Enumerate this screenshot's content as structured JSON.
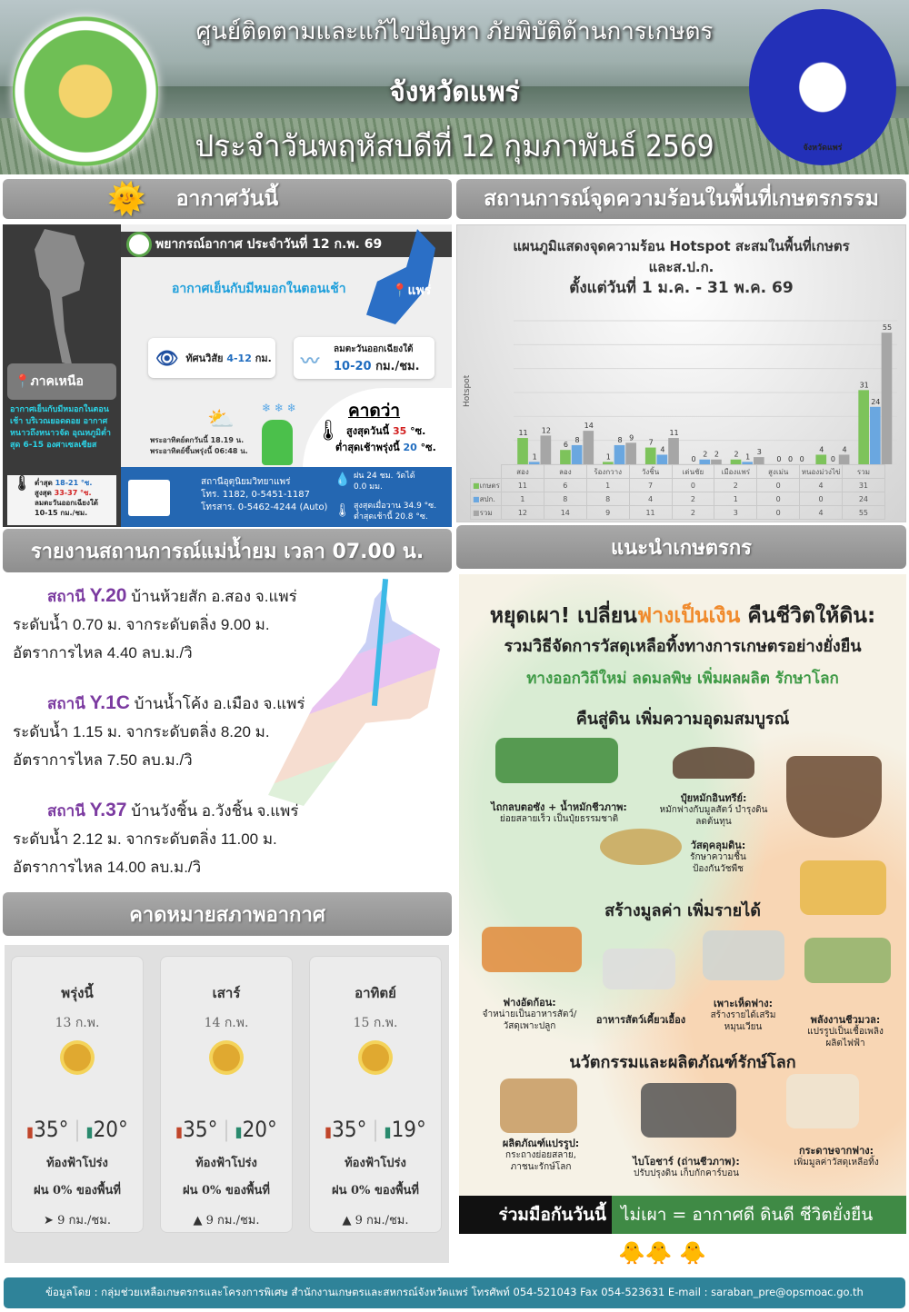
{
  "header": {
    "line1": "ศูนย์ติดตามและแก้ไขปัญหา ภัยพิบัติด้านการเกษตร",
    "line2": "จังหวัดแพร่",
    "line3": "ประจำวันพฤหัสบดีที่  12  กุมภาพันธ์  2569",
    "logo_right_text": "จังหวัดแพร่"
  },
  "sections": {
    "weather_today": "อากาศวันนี้",
    "hotspot": "สถานการณ์จุดความร้อนในพื้นที่เกษตรกรรม",
    "river": "รายงานสถานการณ์แม่น้ำยม เวลา 07.00 น.",
    "advice": "แนะนำเกษตรกร",
    "forecast": "คาดหมายสภาพอากาศ"
  },
  "weather": {
    "title": "พยากรณ์อากาศ ประจำวันที่ 12 ก.พ. 69",
    "summary": "อากาศเย็นกับมีหมอกในตอนเช้า",
    "province": "แพร่",
    "region": "ภาคเหนือ",
    "region_text": "อากาศเย็นกับมีหมอกในตอนเช้า บริเวณยอดดอย อากาศหนาวถึงหนาวจัด อุณหภูมิต่ำสุด 6-15 องศาเซลเซียส",
    "region_min_label": "ต่ำสุด",
    "region_min": "18-21 °ซ.",
    "region_max_label": "สูงสุด",
    "region_max": "33-37 °ซ.",
    "region_wind": "ลมตะวันออกเฉียงใต้",
    "region_wind_speed": "10-15 กม./ชม.",
    "visibility_label": "ทัศนวิสัย",
    "visibility": "4-12",
    "visibility_unit": "กม.",
    "wind_label": "ลมตะวันออกเฉียงใต้",
    "wind_speed": "10-20",
    "wind_unit": "กม./ชม.",
    "sunset": "พระอาทิตย์ตกวันนี้ 18.19 น.",
    "sunrise": "พระอาทิตย์ขึ้นพรุ่งนี้ 06:48 น.",
    "expect_title": "คาดว่า",
    "max_label": "สูงสุดวันนี้",
    "max": "35",
    "min_label": "ต่ำสุดเช้าพรุ่งนี้",
    "min": "20",
    "deg": "°ซ.",
    "station_name": "สถานีอุตุนิยมวิทยาแพร่",
    "station_tel": "โทร. 1182, 0-5451-1187",
    "station_fax": "โทรสาร. 0-5462-4244 (Auto)",
    "rain_label": "ฝน 24 ชม. วัดได้",
    "rain": "0.0 มม.",
    "yest_max": "สูงสุดเมื่อวาน 34.9 °ซ.",
    "today_min": "ต่ำสุดเช้านี้ 20.8 °ซ."
  },
  "chart_data": {
    "type": "bar",
    "title": "แผนภูมิแสดงจุดความร้อน Hotspot สะสมในพื้นที่เกษตร",
    "title2": "และส.ป.ก.",
    "subtitle": "ตั้งแต่วันที่ 1 ม.ค. - 31 พ.ค. 69",
    "ylabel": "Hotspot",
    "xlabel": "",
    "ylim": [
      0,
      60
    ],
    "grid": true,
    "legend": "table-bottom",
    "categories": [
      "สอง",
      "ลอง",
      "ร้องกวาง",
      "วังชิ้น",
      "เด่นชัย",
      "เมืองแพร่",
      "สูงเม่น",
      "หนองม่วงไข่",
      "รวม"
    ],
    "series": [
      {
        "name": "เกษตร",
        "color": "#7dc35b",
        "values": [
          11,
          6,
          1,
          7,
          0,
          2,
          0,
          4,
          31
        ]
      },
      {
        "name": "สปก.",
        "color": "#6aa7e0",
        "values": [
          1,
          8,
          8,
          4,
          2,
          1,
          0,
          0,
          24
        ]
      },
      {
        "name": "รวม",
        "color": "#a6a6a6",
        "values": [
          12,
          14,
          9,
          11,
          2,
          3,
          0,
          4,
          55
        ]
      }
    ]
  },
  "river": {
    "stations": [
      {
        "label": "สถานี",
        "code": "Y.20",
        "location": "บ้านห้วยสัก อ.สอง จ.แพร่",
        "level": "ระดับน้ำ 0.70 ม. จากระดับตลิ่ง 9.00 ม.",
        "flow": "อัตราการไหล 4.40 ลบ.ม./วิ"
      },
      {
        "label": "สถานี",
        "code": "Y.1C",
        "location": "บ้านน้ำโค้ง อ.เมือง จ.แพร่",
        "level": "ระดับน้ำ 1.15 ม. จากระดับตลิ่ง 8.20 ม.",
        "flow": "อัตราการไหล 7.50 ลบ.ม./วิ"
      },
      {
        "label": "สถานี",
        "code": "Y.37",
        "location": "บ้านวังชิ้น อ.วังชิ้น จ.แพร่",
        "level": "ระดับน้ำ 2.12 ม. จากระดับตลิ่ง 11.00 ม.",
        "flow": "อัตราการไหล 14.00 ลบ.ม./วิ"
      }
    ]
  },
  "forecast": [
    {
      "day": "พรุ่งนี้",
      "date": "13 ก.พ.",
      "icon": "sun-icon",
      "max": "35°",
      "min": "20°",
      "sky": "ท้องฟ้าโปร่ง",
      "rain": "ฝน 0% ของพื้นที่",
      "wind": "9 กม./ชม.",
      "wind_arrow": "➤"
    },
    {
      "day": "เสาร์",
      "date": "14 ก.พ.",
      "icon": "sun-icon",
      "max": "35°",
      "min": "20°",
      "sky": "ท้องฟ้าโปร่ง",
      "rain": "ฝน 0% ของพื้นที่",
      "wind": "9 กม./ชม.",
      "wind_arrow": "▲"
    },
    {
      "day": "อาทิตย์",
      "date": "15 ก.พ.",
      "icon": "sun-icon",
      "max": "35°",
      "min": "19°",
      "sky": "ท้องฟ้าโปร่ง",
      "rain": "ฝน 0% ของพื้นที่",
      "wind": "9 กม./ชม.",
      "wind_arrow": "▲"
    }
  ],
  "advice": {
    "title_a": "หยุดเผา! เปลี่ยน",
    "title_hl": "ฟางเป็นเงิน",
    "title_b": " คืนชีวิตให้ดิน:",
    "title2": "รวมวิธีจัดการวัสดุเหลือทิ้งทางการเกษตรอย่างยั่งยืน",
    "tagline": "ทางออกวิถีใหม่ ลดมลพิษ เพิ่มผลผลิต รักษาโลก",
    "h1": "คืนสู่ดิน เพิ่มความอุดมสมบูรณ์",
    "plough_b": "ไถกลบตอซัง + น้ำหมักชีวภาพ:",
    "plough": "ย่อยสลายเร็ว เป็นปุ๋ยธรรมชาติ",
    "compost_b": "ปุ๋ยหมักอินทรีย์:",
    "compost": "หมักฟางกับมูลสัตว์ บำรุงดิน ลดต้นทุน",
    "mulch_b": "วัสดุคลุมดิน:",
    "mulch": "รักษาความชื้น ป้องกันวัชพืช",
    "h2": "สร้างมูลค่า เพิ่มรายได้",
    "bale_b": "ฟางอัดก้อน:",
    "bale": "จำหน่ายเป็นอาหารสัตว์/ วัสดุเพาะปลูก",
    "feed_b": "อาหารสัตว์เคี้ยวเอื้อง",
    "mush_b": "เพาะเห็ดฟาง:",
    "mush": "สร้างรายได้เสริม หมุนเวียน",
    "bio_b": "พลังงานชีวมวล:",
    "bio": "แปรรูปเป็นเชื้อเพลิง ผลิตไฟฟ้า",
    "h3": "นวัตกรรมและผลิตภัณฑ์รักษ์โลก",
    "prod_b": "ผลิตภัณฑ์แปรรูป:",
    "prod": "กระถางย่อยสลาย, ภาชนะรักษ์โลก",
    "char_b": "ไบโอชาร์ (ถ่านชีวภาพ):",
    "char": "ปรับปรุงดิน เก็บกักคาร์บอน",
    "paper_b": "กระดาษจากฟาง:",
    "paper": "เพิ่มมูลค่าวัสดุเหลือทิ้ง",
    "banner_a": "ร่วมมือกันวันนี้",
    "banner_b": "ไม่เผา = อากาศดี ดินดี ชีวิตยั่งยืน",
    "ducks": "🐥🐥    🐥"
  },
  "footer": "ข้อมูลโดย : กลุ่มช่วยเหลือเกษตรกรและโครงการพิเศษ สำนักงานเกษตรและสหกรณ์จังหวัดแพร่ โทรศัพท์ 054-521043 Fax 054-523631 E-mail : saraban_pre@opsmoac.go.th"
}
